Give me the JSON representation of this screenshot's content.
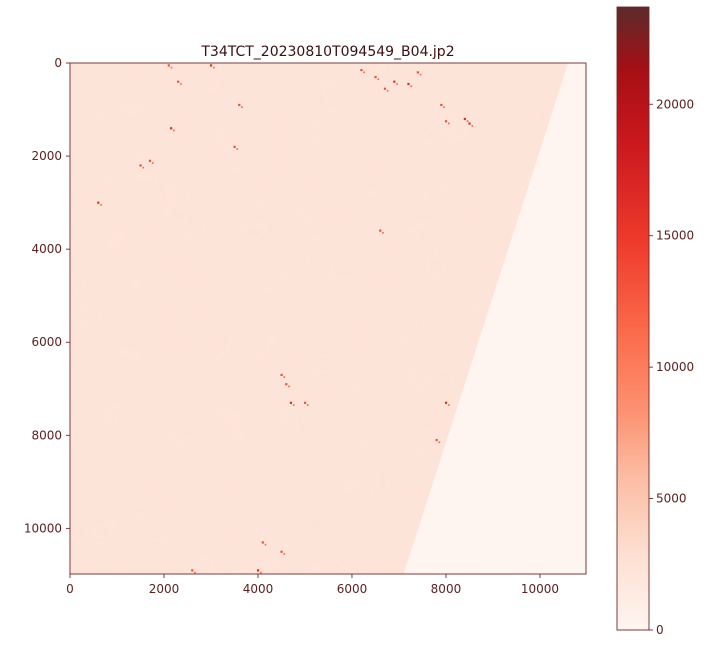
{
  "chart_data": {
    "type": "heatmap",
    "title": "T34TCT_20230810T094549_B04.jp2",
    "xlabel": "",
    "ylabel": "",
    "xlim": [
      0,
      10980
    ],
    "ylim": [
      10980,
      0
    ],
    "x_ticks": [
      0,
      2000,
      4000,
      6000,
      8000,
      10000
    ],
    "x_tick_labels": [
      "0",
      "2000",
      "4000",
      "6000",
      "8000",
      "10000"
    ],
    "y_ticks": [
      0,
      2000,
      4000,
      6000,
      8000,
      10000
    ],
    "y_tick_labels": [
      "0",
      "2000",
      "4000",
      "6000",
      "8000",
      "10000"
    ],
    "colormap": "Reds",
    "colorbar": {
      "range": [
        0,
        23700
      ],
      "ticks": [
        0,
        5000,
        10000,
        15000,
        20000
      ],
      "tick_labels": [
        "0",
        "5000",
        "10000",
        "15000",
        "20000"
      ]
    },
    "image_description": {
      "valid_region_value_approx": 2000,
      "nodata_region_value": 0,
      "nodata_edge_top": [
        10600,
        0
      ],
      "nodata_edge_bottom": [
        7100,
        10980
      ]
    },
    "bright_pixels": [
      [
        2150,
        1400
      ],
      [
        3600,
        900
      ],
      [
        6700,
        550
      ],
      [
        7200,
        450
      ],
      [
        6500,
        300
      ],
      [
        8000,
        1250
      ],
      [
        8500,
        1300
      ],
      [
        1700,
        2100
      ],
      [
        1500,
        2200
      ],
      [
        600,
        3000
      ],
      [
        6600,
        3600
      ],
      [
        4500,
        6700
      ],
      [
        4700,
        7300
      ],
      [
        5000,
        7300
      ],
      [
        7800,
        8100
      ],
      [
        8000,
        7300
      ],
      [
        4100,
        10300
      ],
      [
        4500,
        10500
      ],
      [
        4000,
        10900
      ],
      [
        2600,
        10900
      ],
      [
        2100,
        50
      ],
      [
        3000,
        50
      ],
      [
        2300,
        400
      ],
      [
        6200,
        150
      ],
      [
        6900,
        400
      ],
      [
        7900,
        900
      ],
      [
        3500,
        1800
      ],
      [
        8400,
        1200
      ],
      [
        7400,
        200
      ],
      [
        4600,
        6900
      ]
    ],
    "colors": {
      "low": "#fff5f0",
      "valid": "#fde3d8",
      "text": "#5a1f1f",
      "spine": "#6b2a2a"
    }
  }
}
